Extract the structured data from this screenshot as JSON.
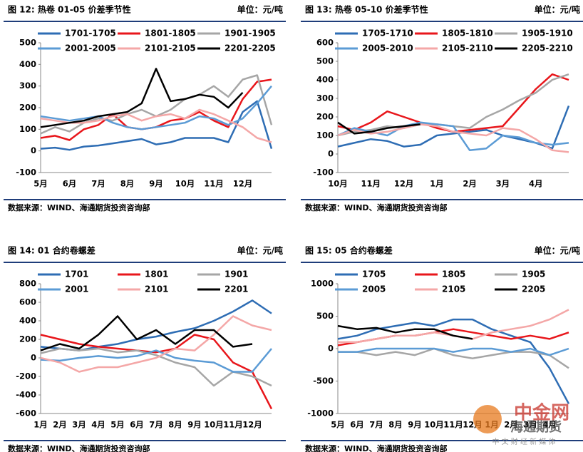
{
  "chart_data": [
    {
      "type": "line",
      "title": "图 12: 热卷 01-05 价差季节性",
      "unit": "单位：元/吨",
      "source": "数据来源：WIND、海通期货投资咨询部",
      "categories": [
        "5月",
        null,
        "6月",
        null,
        "7月",
        null,
        "8月",
        null,
        "9月",
        null,
        "10月",
        null,
        "11月",
        null,
        "12月",
        null,
        null
      ],
      "ylim": [
        -100,
        500
      ],
      "yticks": [
        -100,
        0,
        100,
        200,
        300,
        400,
        500
      ],
      "series": [
        {
          "name": "1701-1705",
          "color": "#2e6db4",
          "values": [
            10,
            15,
            5,
            20,
            25,
            35,
            45,
            55,
            30,
            40,
            60,
            60,
            60,
            40,
            180,
            230,
            10
          ]
        },
        {
          "name": "1801-1805",
          "color": "#e8161b",
          "values": [
            60,
            70,
            50,
            100,
            120,
            170,
            110,
            100,
            110,
            140,
            150,
            180,
            140,
            110,
            240,
            320,
            330
          ]
        },
        {
          "name": "1901-1905",
          "color": "#a6a6a6",
          "values": [
            80,
            110,
            90,
            130,
            150,
            140,
            170,
            190,
            160,
            190,
            240,
            260,
            300,
            250,
            330,
            350,
            120
          ]
        },
        {
          "name": "2001-2005",
          "color": "#5b9bd5",
          "values": [
            160,
            150,
            140,
            150,
            160,
            130,
            110,
            100,
            110,
            120,
            130,
            160,
            150,
            120,
            150,
            220,
            300
          ]
        },
        {
          "name": "2101-2105",
          "color": "#f4a7a7",
          "values": [
            150,
            140,
            130,
            130,
            140,
            160,
            170,
            140,
            160,
            170,
            150,
            190,
            170,
            140,
            110,
            60,
            40
          ]
        },
        {
          "name": "2201-2205",
          "color": "#000000",
          "values": [
            110,
            120,
            130,
            140,
            160,
            170,
            180,
            220,
            380,
            230,
            240,
            260,
            250,
            200,
            270,
            null,
            null
          ]
        }
      ]
    },
    {
      "type": "line",
      "title": "图 13: 热卷 05-10 价差季节性",
      "unit": "单位：元/吨",
      "source": "数据来源：WIND、海通期货投资咨询部",
      "categories": [
        "10月",
        null,
        "11月",
        null,
        "12月",
        null,
        "1月",
        null,
        "2月",
        null,
        "3月",
        null,
        "4月",
        null,
        null
      ],
      "ylim": [
        -100,
        600
      ],
      "yticks": [
        -100,
        0,
        100,
        200,
        300,
        400,
        500,
        600
      ],
      "series": [
        {
          "name": "1705-1710",
          "color": "#2e6db4",
          "values": [
            40,
            60,
            80,
            70,
            40,
            50,
            100,
            110,
            120,
            130,
            100,
            80,
            60,
            30,
            260
          ]
        },
        {
          "name": "1805-1810",
          "color": "#e8161b",
          "values": [
            150,
            130,
            170,
            230,
            200,
            170,
            140,
            120,
            130,
            140,
            150,
            250,
            350,
            430,
            400
          ]
        },
        {
          "name": "1905-1910",
          "color": "#a6a6a6",
          "values": [
            100,
            120,
            130,
            150,
            140,
            160,
            160,
            150,
            140,
            200,
            240,
            290,
            330,
            400,
            430
          ]
        },
        {
          "name": "2005-2010",
          "color": "#5b9bd5",
          "values": [
            100,
            140,
            120,
            100,
            150,
            170,
            160,
            150,
            20,
            30,
            100,
            90,
            60,
            50,
            60
          ]
        },
        {
          "name": "2105-2110",
          "color": "#f4a7a7",
          "values": [
            100,
            130,
            110,
            120,
            140,
            160,
            150,
            120,
            110,
            100,
            140,
            130,
            80,
            20,
            10
          ]
        },
        {
          "name": "2205-2210",
          "color": "#000000",
          "values": [
            170,
            110,
            120,
            140,
            150,
            160,
            null,
            null,
            null,
            null,
            null,
            null,
            null,
            null,
            null
          ]
        }
      ]
    },
    {
      "type": "line",
      "title": "图 14:   01 合约卷螺差",
      "unit": "单位：元/吨",
      "source": "数据来源：WIND、海通期货投资咨询部",
      "categories": [
        "1月",
        "2月",
        "3月",
        "4月",
        "5月",
        "6月",
        "7月",
        "8月",
        "9月",
        "10月",
        "11月",
        "12月",
        null
      ],
      "ylim": [
        -600,
        800
      ],
      "yticks": [
        -600,
        -400,
        -200,
        0,
        200,
        400,
        600,
        800
      ],
      "series": [
        {
          "name": "1701",
          "color": "#2e6db4",
          "values": [
            120,
            100,
            80,
            120,
            150,
            200,
            230,
            280,
            320,
            400,
            500,
            620,
            480
          ]
        },
        {
          "name": "1801",
          "color": "#e8161b",
          "values": [
            250,
            200,
            150,
            120,
            100,
            80,
            60,
            100,
            250,
            200,
            -50,
            -150,
            -550
          ]
        },
        {
          "name": "1901",
          "color": "#a6a6a6",
          "values": [
            50,
            100,
            80,
            100,
            60,
            80,
            30,
            -50,
            -100,
            -300,
            -150,
            -200,
            -300
          ]
        },
        {
          "name": "2001",
          "color": "#5b9bd5",
          "values": [
            -20,
            -30,
            0,
            20,
            0,
            20,
            80,
            0,
            -30,
            -50,
            -150,
            -150,
            100
          ]
        },
        {
          "name": "2101",
          "color": "#f4a7a7",
          "values": [
            0,
            -50,
            -150,
            -100,
            -100,
            -50,
            0,
            100,
            80,
            250,
            450,
            350,
            300
          ]
        },
        {
          "name": "2201",
          "color": "#000000",
          "values": [
            80,
            150,
            100,
            250,
            450,
            200,
            300,
            150,
            300,
            300,
            120,
            150,
            null
          ]
        }
      ]
    },
    {
      "type": "line",
      "title": "图 15:   05 合约卷螺差",
      "unit": "单位：元/吨",
      "source": "数据来源：WIND、海通期货投资咨询部",
      "categories": [
        "5月",
        "6月",
        "7月",
        "8月",
        "9月",
        "10月",
        "11月",
        "12月",
        "1月",
        "2月",
        "3月",
        "4月",
        null
      ],
      "ylim": [
        -1000,
        1000
      ],
      "yticks": [
        -1000,
        -500,
        0,
        500,
        1000
      ],
      "series": [
        {
          "name": "1705",
          "color": "#2e6db4",
          "values": [
            150,
            200,
            300,
            350,
            400,
            350,
            450,
            450,
            300,
            200,
            100,
            -300,
            -850
          ]
        },
        {
          "name": "1805",
          "color": "#e8161b",
          "values": [
            50,
            100,
            150,
            200,
            200,
            250,
            300,
            250,
            200,
            150,
            200,
            150,
            250
          ]
        },
        {
          "name": "1905",
          "color": "#a6a6a6",
          "values": [
            -50,
            -50,
            -100,
            -50,
            -100,
            0,
            -100,
            -150,
            -100,
            -50,
            -50,
            -100,
            -300
          ]
        },
        {
          "name": "2005",
          "color": "#5b9bd5",
          "values": [
            -50,
            -50,
            0,
            0,
            0,
            0,
            -50,
            0,
            0,
            -50,
            0,
            -100,
            0
          ]
        },
        {
          "name": "2105",
          "color": "#f4a7a7",
          "values": [
            100,
            100,
            150,
            200,
            200,
            250,
            200,
            150,
            250,
            300,
            350,
            450,
            600
          ]
        },
        {
          "name": "2205",
          "color": "#000000",
          "values": [
            350,
            300,
            320,
            250,
            300,
            300,
            200,
            150,
            null,
            null,
            null,
            null,
            null
          ]
        }
      ]
    }
  ],
  "watermark": {
    "logo": "中金网",
    "overlay": "海通期货",
    "tagline": "中 文 财 经 新 媒 体"
  }
}
